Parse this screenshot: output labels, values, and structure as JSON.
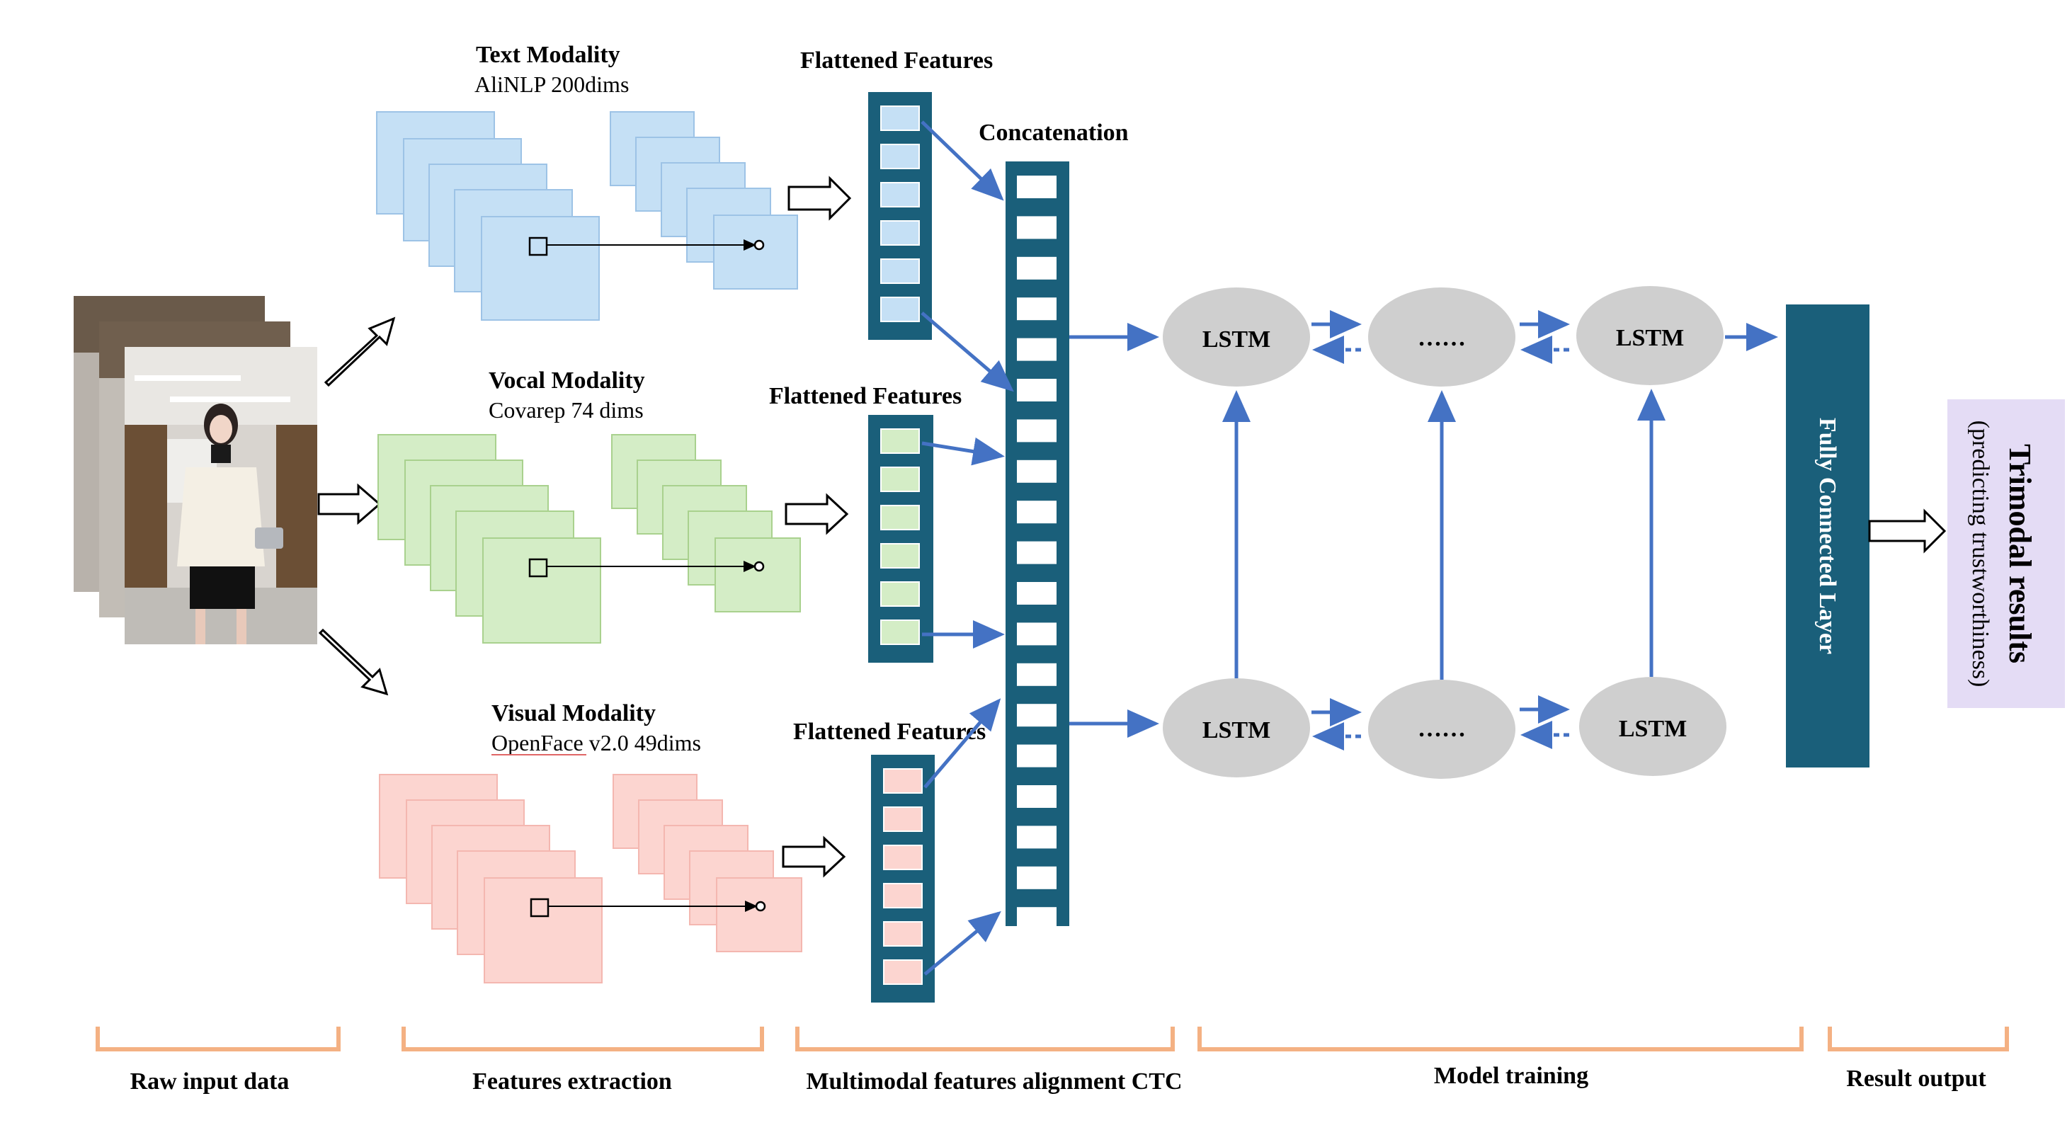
{
  "raw_input": {
    "image_desc": "photo-frames-icon"
  },
  "modalities": {
    "text": {
      "title": "Text Modality",
      "subtitle": "AliNLP 200dims",
      "color": "#c5e0f5",
      "border": "#9dc3e6"
    },
    "vocal": {
      "title": "Vocal Modality",
      "subtitle": "Covarep 74 dims",
      "color": "#d4edc6",
      "border": "#a9d18e"
    },
    "visual": {
      "title": "Visual Modality",
      "subtitle": "OpenFace v2.0 49dims",
      "color": "#fcd5d0",
      "border": "#f4b183"
    }
  },
  "flattened": {
    "text_label": "Flattened Features",
    "vocal_label": "Flattened Features",
    "visual_label": "Flattened Features"
  },
  "concat_label": "Concatenation",
  "lstm": {
    "top": [
      "LSTM",
      "……",
      "LSTM"
    ],
    "bottom": [
      "LSTM",
      "……",
      "LSTM"
    ]
  },
  "fc_label": "Fully Connected Layer",
  "result": {
    "title": "Trimodal results",
    "subtitle": "(predicting trustworthiness)"
  },
  "stages": [
    "Raw input data",
    "Features extraction",
    "Multimodal features alignment CTC",
    "Model training",
    "Result output"
  ],
  "colors": {
    "dark_teal": "#1a5f7a",
    "arrow_blue": "#4472c4",
    "lstm_gray": "#cfcfcf",
    "bracket_orange": "#f4b183",
    "result_purple": "#e4dcf5"
  }
}
